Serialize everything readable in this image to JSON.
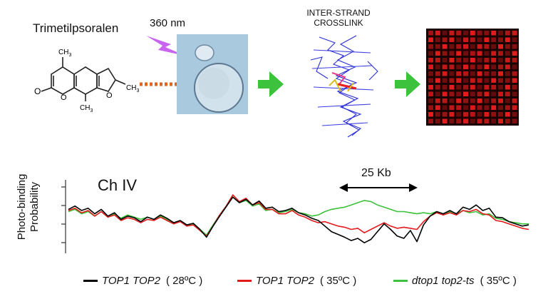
{
  "figure": {
    "compound_name": "Trimetilpsoralen",
    "wavelength": "360 nm",
    "crosslink_line1": "INTER-STRAND",
    "crosslink_line2": "CROSSLINK",
    "methyl_label": "CH",
    "methyl_subscript": "3",
    "oxygen_label": "O",
    "ylabel_line1": "Photo-binding",
    "ylabel_line2": "Probability",
    "chromosome_label": "Ch IV",
    "scale_label": "25  Kb",
    "colors": {
      "arrow_orange": "#e0651c",
      "arrow_green": "#3cc23c",
      "flash_purple": "#c864f0",
      "cell_bg": "#a9c9df",
      "microarray_red": "#e31c1c",
      "dna_blue": "#2b2fd6"
    }
  },
  "chart_data": {
    "type": "line",
    "title": "Ch IV",
    "xlabel": "",
    "ylabel": "Photo-binding Probability",
    "annotations": [
      "25  Kb"
    ],
    "series": [
      {
        "name": "TOP1 TOP2",
        "condition": "28ºC",
        "color": "#000000",
        "values": [
          0.7,
          0.76,
          0.68,
          0.72,
          0.62,
          0.7,
          0.58,
          0.64,
          0.52,
          0.58,
          0.55,
          0.48,
          0.56,
          0.52,
          0.6,
          0.54,
          0.46,
          0.5,
          0.42,
          0.45,
          0.34,
          0.2,
          0.4,
          0.58,
          0.75,
          0.92,
          0.82,
          0.88,
          0.78,
          0.85,
          0.72,
          0.74,
          0.66,
          0.68,
          0.72,
          0.64,
          0.6,
          0.54,
          0.5,
          0.4,
          0.3,
          0.25,
          0.2,
          0.14,
          0.18,
          0.1,
          0.16,
          0.3,
          0.44,
          0.34,
          0.22,
          0.18,
          0.32,
          0.12,
          0.42,
          0.58,
          0.66,
          0.62,
          0.68,
          0.62,
          0.74,
          0.7,
          0.78,
          0.68,
          0.72,
          0.56,
          0.55,
          0.48,
          0.44,
          0.4,
          0.42
        ]
      },
      {
        "name": "TOP1 TOP2",
        "condition": "35ºC",
        "color": "#e41a1c",
        "values": [
          0.68,
          0.72,
          0.64,
          0.68,
          0.58,
          0.66,
          0.56,
          0.6,
          0.5,
          0.55,
          0.52,
          0.46,
          0.52,
          0.5,
          0.56,
          0.5,
          0.44,
          0.48,
          0.4,
          0.42,
          0.32,
          0.22,
          0.4,
          0.6,
          0.76,
          0.96,
          0.84,
          0.9,
          0.78,
          0.82,
          0.7,
          0.7,
          0.62,
          0.62,
          0.68,
          0.6,
          0.56,
          0.5,
          0.46,
          0.48,
          0.44,
          0.4,
          0.38,
          0.34,
          0.36,
          0.28,
          0.34,
          0.4,
          0.46,
          0.4,
          0.36,
          0.38,
          0.36,
          0.34,
          0.48,
          0.58,
          0.64,
          0.6,
          0.64,
          0.6,
          0.68,
          0.66,
          0.7,
          0.62,
          0.6,
          0.5,
          0.48,
          0.44,
          0.4,
          0.36,
          0.34
        ]
      },
      {
        "name": "dtop1 top2-ts",
        "condition": "35ºC",
        "color": "#3cc23c",
        "values": [
          0.66,
          0.7,
          0.62,
          0.66,
          0.58,
          0.66,
          0.56,
          0.62,
          0.54,
          0.6,
          0.56,
          0.52,
          0.56,
          0.52,
          0.58,
          0.52,
          0.46,
          0.5,
          0.42,
          0.44,
          0.34,
          0.24,
          0.42,
          0.6,
          0.76,
          0.92,
          0.82,
          0.86,
          0.76,
          0.8,
          0.68,
          0.7,
          0.64,
          0.66,
          0.7,
          0.64,
          0.62,
          0.58,
          0.6,
          0.66,
          0.7,
          0.72,
          0.74,
          0.78,
          0.82,
          0.86,
          0.84,
          0.78,
          0.74,
          0.7,
          0.66,
          0.66,
          0.64,
          0.62,
          0.64,
          0.62,
          0.66,
          0.62,
          0.66,
          0.62,
          0.68,
          0.64,
          0.66,
          0.6,
          0.62,
          0.54,
          0.52,
          0.48,
          0.46,
          0.44,
          0.44
        ]
      }
    ],
    "legend": [
      {
        "name": "TOP1 TOP2",
        "condition": "( 28ºC )",
        "color": "#000000"
      },
      {
        "name": "TOP1 TOP2",
        "condition": "( 35ºC )",
        "color": "#e41a1c"
      },
      {
        "name": "dtop1 top2-ts",
        "condition": "( 35ºC )",
        "color": "#3cc23c"
      }
    ],
    "legend_position": "bottom"
  }
}
